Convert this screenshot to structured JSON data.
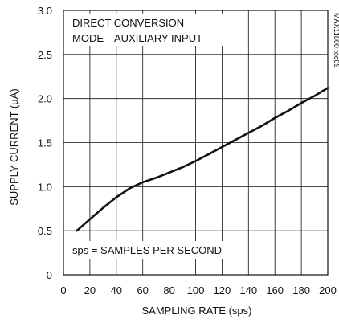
{
  "chart_data": {
    "type": "line",
    "title": "",
    "xlabel": "SAMPLING RATE (sps)",
    "ylabel": "SUPPLY CURRENT (µA)",
    "xlim": [
      0,
      200
    ],
    "ylim": [
      0,
      3.0
    ],
    "x_ticks": [
      0,
      20,
      40,
      60,
      80,
      100,
      120,
      140,
      160,
      180,
      200
    ],
    "y_ticks": [
      0,
      0.5,
      1.0,
      1.5,
      2.0,
      2.5,
      3.0
    ],
    "x_tick_labels": [
      "0",
      "20",
      "40",
      "60",
      "80",
      "100",
      "120",
      "140",
      "160",
      "180",
      "200"
    ],
    "y_tick_labels": [
      "0",
      "0.5",
      "1.0",
      "1.5",
      "2.0",
      "2.5",
      "3.0"
    ],
    "grid": true,
    "series": [
      {
        "x": [
          10,
          20,
          30,
          40,
          50,
          60,
          70,
          80,
          90,
          100,
          110,
          120,
          130,
          140,
          150,
          160,
          170,
          180,
          190,
          200
        ],
        "y": [
          0.5,
          0.63,
          0.76,
          0.88,
          0.98,
          1.05,
          1.1,
          1.16,
          1.22,
          1.29,
          1.37,
          1.45,
          1.53,
          1.61,
          1.69,
          1.78,
          1.86,
          1.95,
          2.03,
          2.12
        ]
      }
    ],
    "annotations": {
      "top_left_line1": "DIRECT CONVERSION",
      "top_left_line2": "MODE—AUXILIARY INPUT",
      "bottom_left": "sps = SAMPLES PER SECOND",
      "side_code": "MAX11800 toc09"
    },
    "colors": {
      "line": "#111111",
      "grid": "#111111",
      "background": "#ffffff"
    }
  }
}
